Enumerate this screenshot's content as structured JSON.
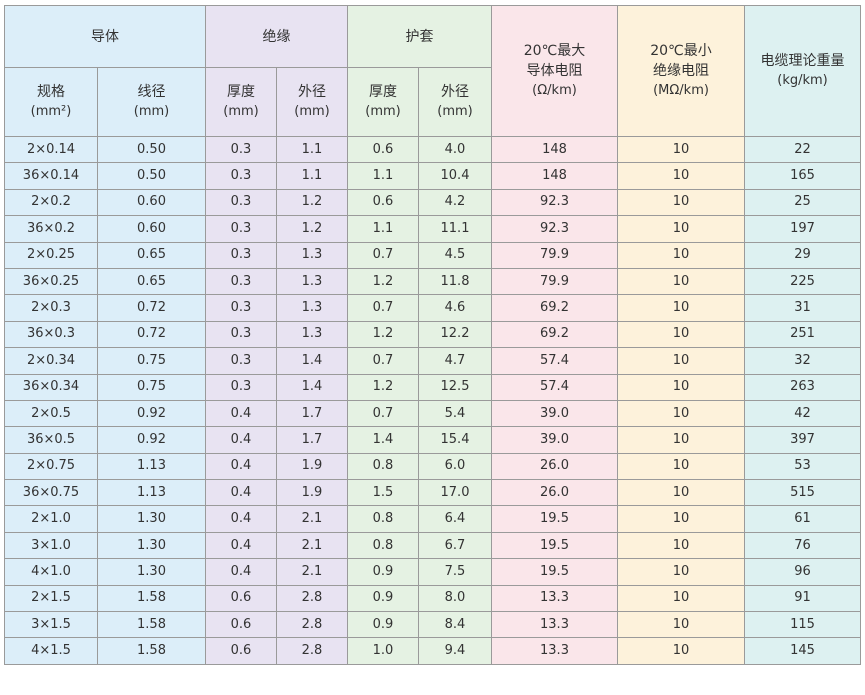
{
  "header": {
    "conductor": "导体",
    "insulation": "绝缘",
    "sheath": "护套",
    "max_resistance": {
      "line1": "20℃最大",
      "line2": "导体电阻",
      "unit": "(Ω/km)"
    },
    "min_insulation": {
      "line1": "20℃最小",
      "line2": "绝缘电阻",
      "unit": "(MΩ/km)"
    },
    "weight": {
      "line1": "电缆理论重量",
      "unit": "(kg/km)"
    }
  },
  "subheader": {
    "spec": {
      "label": "规格",
      "unit": "(mm²)"
    },
    "wire_dia": {
      "label": "线径",
      "unit": "(mm)"
    },
    "ins_thick": {
      "label": "厚度",
      "unit": "(mm)"
    },
    "ins_od": {
      "label": "外径",
      "unit": "(mm)"
    },
    "sh_thick": {
      "label": "厚度",
      "unit": "(mm)"
    },
    "sh_od": {
      "label": "外径",
      "unit": "(mm)"
    }
  },
  "rows": [
    [
      "2×0.14",
      "0.50",
      "0.3",
      "1.1",
      "0.6",
      "4.0",
      "148",
      "10",
      "22"
    ],
    [
      "36×0.14",
      "0.50",
      "0.3",
      "1.1",
      "1.1",
      "10.4",
      "148",
      "10",
      "165"
    ],
    [
      "2×0.2",
      "0.60",
      "0.3",
      "1.2",
      "0.6",
      "4.2",
      "92.3",
      "10",
      "25"
    ],
    [
      "36×0.2",
      "0.60",
      "0.3",
      "1.2",
      "1.1",
      "11.1",
      "92.3",
      "10",
      "197"
    ],
    [
      "2×0.25",
      "0.65",
      "0.3",
      "1.3",
      "0.7",
      "4.5",
      "79.9",
      "10",
      "29"
    ],
    [
      "36×0.25",
      "0.65",
      "0.3",
      "1.3",
      "1.2",
      "11.8",
      "79.9",
      "10",
      "225"
    ],
    [
      "2×0.3",
      "0.72",
      "0.3",
      "1.3",
      "0.7",
      "4.6",
      "69.2",
      "10",
      "31"
    ],
    [
      "36×0.3",
      "0.72",
      "0.3",
      "1.3",
      "1.2",
      "12.2",
      "69.2",
      "10",
      "251"
    ],
    [
      "2×0.34",
      "0.75",
      "0.3",
      "1.4",
      "0.7",
      "4.7",
      "57.4",
      "10",
      "32"
    ],
    [
      "36×0.34",
      "0.75",
      "0.3",
      "1.4",
      "1.2",
      "12.5",
      "57.4",
      "10",
      "263"
    ],
    [
      "2×0.5",
      "0.92",
      "0.4",
      "1.7",
      "0.7",
      "5.4",
      "39.0",
      "10",
      "42"
    ],
    [
      "36×0.5",
      "0.92",
      "0.4",
      "1.7",
      "1.4",
      "15.4",
      "39.0",
      "10",
      "397"
    ],
    [
      "2×0.75",
      "1.13",
      "0.4",
      "1.9",
      "0.8",
      "6.0",
      "26.0",
      "10",
      "53"
    ],
    [
      "36×0.75",
      "1.13",
      "0.4",
      "1.9",
      "1.5",
      "17.0",
      "26.0",
      "10",
      "515"
    ],
    [
      "2×1.0",
      "1.30",
      "0.4",
      "2.1",
      "0.8",
      "6.4",
      "19.5",
      "10",
      "61"
    ],
    [
      "3×1.0",
      "1.30",
      "0.4",
      "2.1",
      "0.8",
      "6.7",
      "19.5",
      "10",
      "76"
    ],
    [
      "4×1.0",
      "1.30",
      "0.4",
      "2.1",
      "0.9",
      "7.5",
      "19.5",
      "10",
      "96"
    ],
    [
      "2×1.5",
      "1.58",
      "0.6",
      "2.8",
      "0.9",
      "8.0",
      "13.3",
      "10",
      "91"
    ],
    [
      "3×1.5",
      "1.58",
      "0.6",
      "2.8",
      "0.9",
      "8.4",
      "13.3",
      "10",
      "115"
    ],
    [
      "4×1.5",
      "1.58",
      "0.6",
      "2.8",
      "1.0",
      "9.4",
      "13.3",
      "10",
      "145"
    ]
  ],
  "colors": {
    "conductor": "#dceef9",
    "insulation": "#e8e3f2",
    "sheath": "#e5f2e3",
    "resistance": "#fae6ea",
    "insulation_resistance": "#fdf2db",
    "weight": "#ddf1f1",
    "border": "#9a9a9a"
  }
}
